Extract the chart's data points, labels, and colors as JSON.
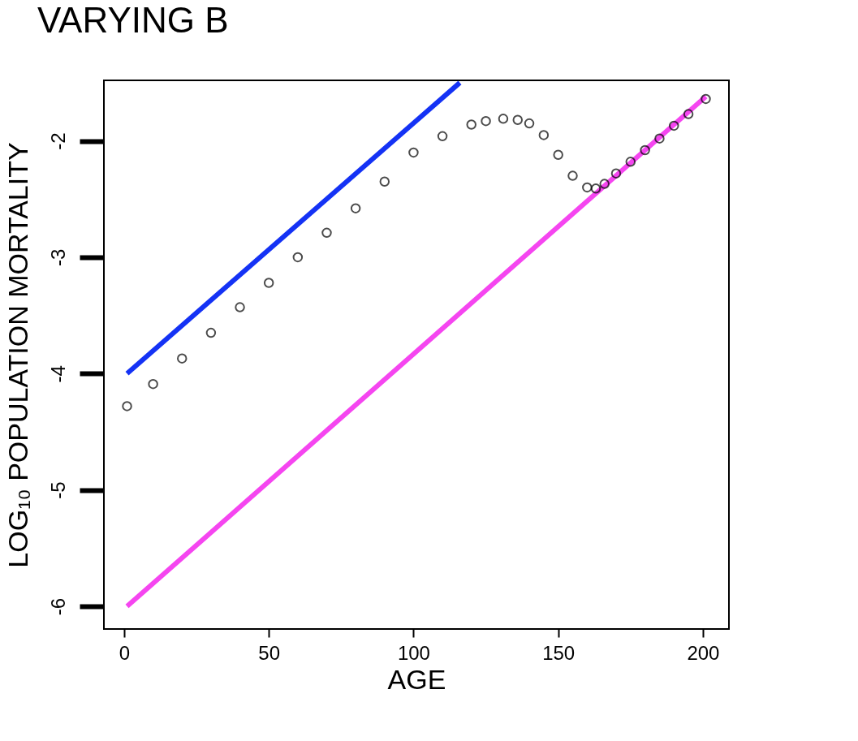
{
  "chart_data": {
    "type": "line",
    "title": "VARYING B",
    "xlabel": "AGE",
    "ylabel": "LOG₁₀ POPULATION MORTALITY",
    "xlim": [
      -7,
      209
    ],
    "ylim": [
      -6.195,
      -1.48
    ],
    "xticks": [
      0,
      50,
      100,
      150,
      200
    ],
    "yticks": [
      -6,
      -5,
      -4,
      -3,
      -2
    ],
    "grid": false,
    "series": [
      {
        "color": "#1432f5",
        "line_style": "solid",
        "marker": "none",
        "x": [
          1,
          116
        ],
        "values": [
          -4.0,
          -1.5
        ]
      },
      {
        "color": "#f545f0",
        "line_style": "solid",
        "marker": "none",
        "x": [
          1,
          201
        ],
        "values": [
          -6.0,
          -1.62
        ]
      },
      {
        "type": "scatter",
        "color": "#000000",
        "marker": "circle",
        "x": [
          1,
          10,
          20,
          30,
          40,
          50,
          60,
          70,
          80,
          90,
          100,
          110,
          120,
          125,
          131,
          136,
          140,
          145,
          150,
          155,
          160,
          163,
          166,
          170,
          175,
          180,
          185,
          190,
          195,
          201
        ],
        "values": [
          -4.28,
          -4.09,
          -3.87,
          -3.65,
          -3.43,
          -3.22,
          -3.0,
          -2.79,
          -2.58,
          -2.35,
          -2.1,
          -1.96,
          -1.86,
          -1.83,
          -1.81,
          -1.82,
          -1.85,
          -1.95,
          -2.12,
          -2.3,
          -2.4,
          -2.41,
          -2.37,
          -2.28,
          -2.18,
          -2.08,
          -1.98,
          -1.87,
          -1.77,
          -1.64
        ]
      }
    ]
  }
}
